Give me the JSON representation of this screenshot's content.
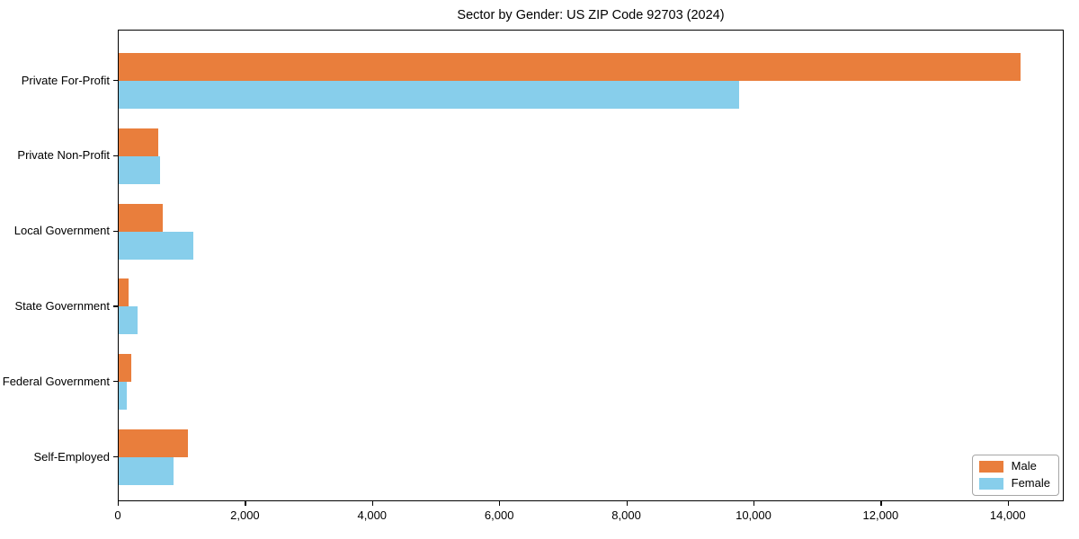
{
  "chart_data": {
    "type": "bar",
    "orientation": "horizontal",
    "title": "Sector by Gender: US ZIP Code 92703 (2024)",
    "categories": [
      "Private For-Profit",
      "Private Non-Profit",
      "Local Government",
      "State Government",
      "Federal Government",
      "Self-Employed"
    ],
    "series": [
      {
        "name": "Male",
        "color": "#e97e3c",
        "values": [
          14180,
          620,
          695,
          150,
          200,
          1090
        ]
      },
      {
        "name": "Female",
        "color": "#87ceeb",
        "values": [
          9760,
          650,
          1175,
          300,
          130,
          865
        ]
      }
    ],
    "x_ticks": [
      0,
      2000,
      4000,
      6000,
      8000,
      10000,
      12000,
      14000
    ],
    "xlim": [
      0,
      14880
    ],
    "ylim_note": "categories listed top to bottom",
    "xlabel": "",
    "ylabel": "",
    "grid": false,
    "legend_position": "lower right",
    "plot_background": "#ffffff",
    "spine_color": "#000000"
  },
  "legend": {
    "border_color": "#a6a6a6"
  }
}
